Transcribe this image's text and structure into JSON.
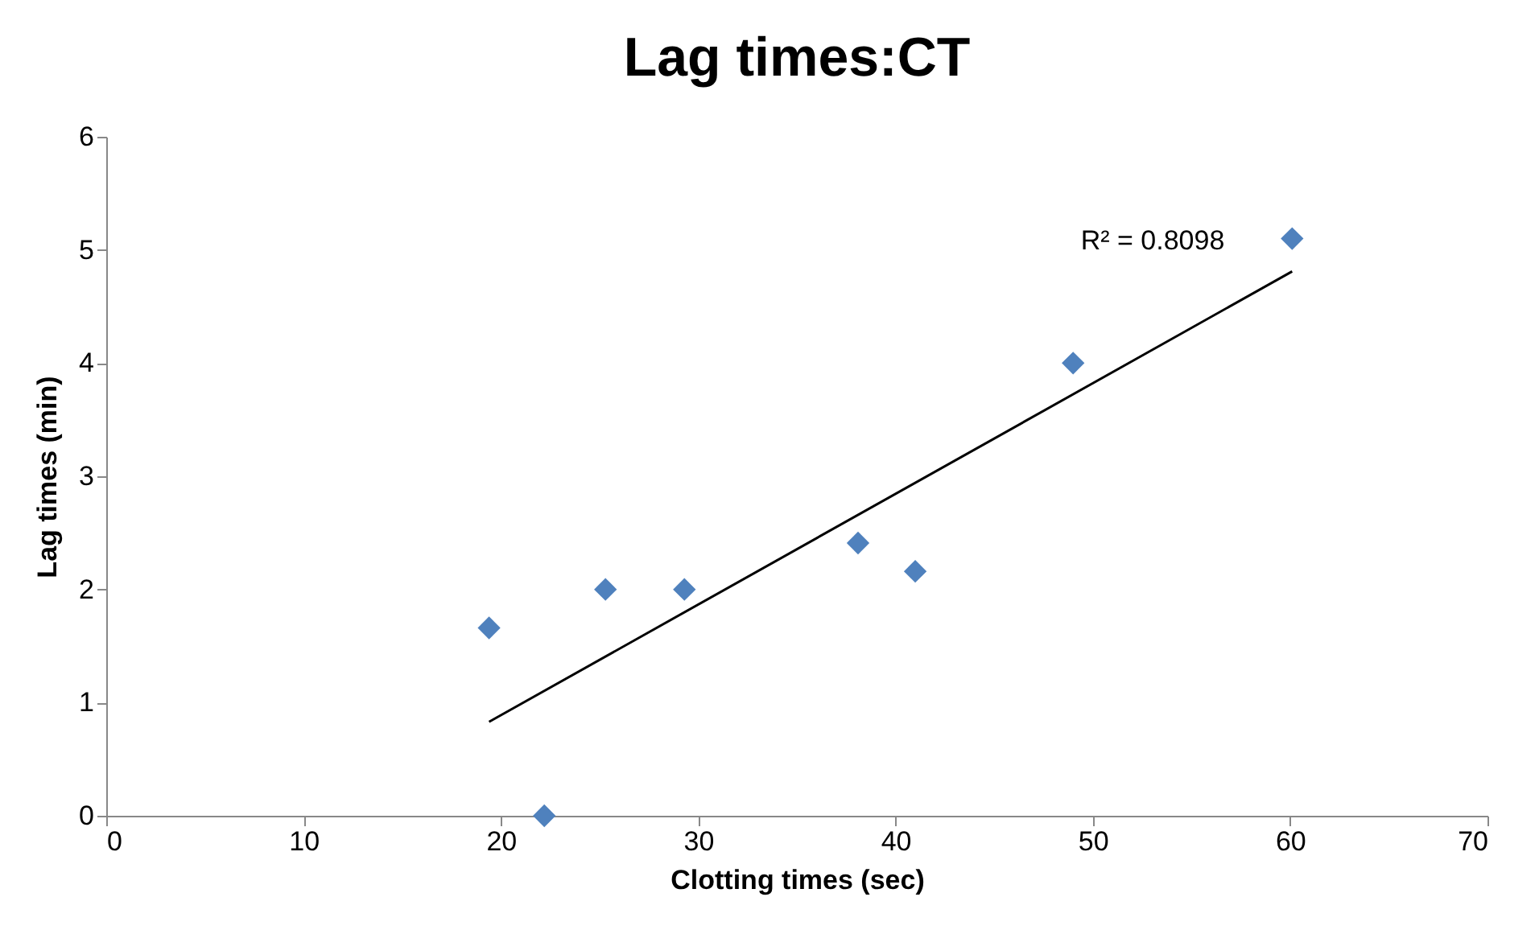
{
  "chart_data": {
    "type": "scatter",
    "title": "Lag times:CT",
    "xlabel": "Clotting times (sec)",
    "ylabel": "Lag times (min)",
    "xlim": [
      0,
      70
    ],
    "xticks": [
      0,
      10,
      20,
      30,
      40,
      50,
      60,
      70
    ],
    "ylim": [
      0,
      6
    ],
    "yticks": [
      {
        "value": 0,
        "label": "0"
      },
      {
        "value": 1,
        "label": "1"
      },
      {
        "value": 2,
        "label": "2"
      },
      {
        "value": 3,
        "label": "3"
      },
      {
        "value": 4,
        "label": "4"
      },
      {
        "value": 5,
        "label": "5"
      },
      {
        "value": 6,
        "label": "6"
      }
    ],
    "grid": false,
    "series": [
      {
        "color": "#4f81bd",
        "marker": "diamond",
        "x": [
          19.4,
          22.2,
          25.3,
          29.3,
          38.1,
          41.0,
          49.0,
          60.1
        ],
        "values": [
          1.66,
          0,
          2.0,
          2.0,
          2.41,
          2.16,
          4.0,
          5.1
        ]
      },
      {
        "type": "line",
        "color": "#000000",
        "x": [
          19.4,
          60.1
        ],
        "values": [
          0.83,
          4.81
        ],
        "line_style": "solid"
      }
    ],
    "annotations": [
      "R² = 0.8098"
    ]
  }
}
